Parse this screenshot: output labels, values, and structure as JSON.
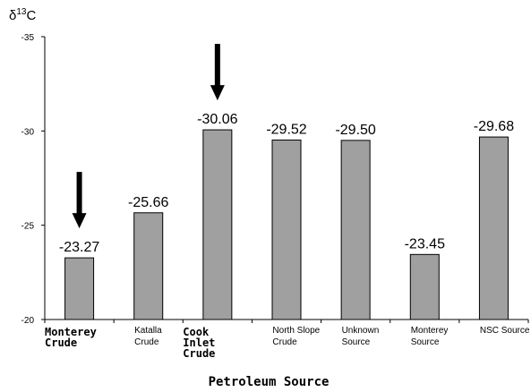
{
  "chart_data": {
    "type": "bar",
    "ylabel": "δ13C",
    "ylabel_parts": {
      "main": "δ",
      "sup": "13",
      "unit": "C"
    },
    "xlabel": "Petroleum Source",
    "ylim": [
      -20,
      -35
    ],
    "y_ticks": [
      "-35",
      "-30",
      "-25",
      "-20"
    ],
    "y_tick_values": [
      -35,
      -30,
      -25,
      -20
    ],
    "grid": false,
    "bar_color": "#a0a0a0",
    "categories": [
      {
        "lines": [
          "Monterey",
          "Crude"
        ],
        "bold": true
      },
      {
        "lines": [
          "Katalla",
          "Crude"
        ],
        "bold": false
      },
      {
        "lines": [
          "Cook",
          "Inlet",
          "Crude"
        ],
        "bold": true
      },
      {
        "lines": [
          "North Slope",
          "Crude"
        ],
        "bold": false
      },
      {
        "lines": [
          "Unknown",
          "Source"
        ],
        "bold": false
      },
      {
        "lines": [
          "Monterey",
          "Source"
        ],
        "bold": false
      },
      {
        "lines": [
          "NSC Source"
        ],
        "bold": false
      }
    ],
    "values": [
      -23.27,
      -25.66,
      -30.06,
      -29.52,
      -29.5,
      -23.45,
      -29.68
    ],
    "value_labels": [
      "-23.27",
      "-25.66",
      "-30.06",
      "-29.52",
      "-29.50",
      "-23.45",
      "-29.68"
    ],
    "arrows_on": [
      "Monterey Crude",
      "Cook Inlet Crude"
    ]
  }
}
